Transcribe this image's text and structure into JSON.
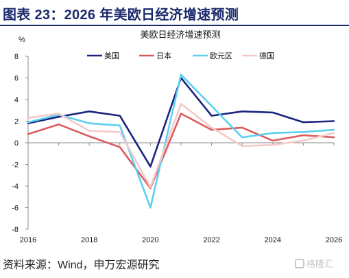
{
  "figure": {
    "title": "图表 23：2026 年美欧日经济增速预测",
    "source": "资料来源：Wind，申万宏源研究",
    "watermark": "格隆汇"
  },
  "chart_data": {
    "type": "line",
    "title": "美欧日经济增速预测",
    "ylabel": "%",
    "xlabel": "",
    "x": [
      2016,
      2017,
      2018,
      2019,
      2020,
      2021,
      2022,
      2023,
      2024,
      2025,
      2026
    ],
    "xticks": [
      "2016",
      "2018",
      "2020",
      "2022",
      "2024",
      "2026"
    ],
    "yticks": [
      "8",
      "6",
      "4",
      "2",
      "0",
      "-2",
      "-4",
      "-6",
      "-8"
    ],
    "ylim": [
      -8,
      8
    ],
    "grid": false,
    "legend_position": "top",
    "series": [
      {
        "name": "美国",
        "color": "#1a237e",
        "values": [
          1.8,
          2.4,
          2.9,
          2.5,
          -2.2,
          6.0,
          2.5,
          2.9,
          2.8,
          1.9,
          2.0
        ]
      },
      {
        "name": "日本",
        "color": "#dc5a5a",
        "values": [
          0.8,
          1.7,
          0.6,
          -0.4,
          -4.2,
          2.7,
          1.2,
          1.4,
          0.2,
          0.7,
          0.5
        ]
      },
      {
        "name": "欧元区",
        "color": "#5bd0f0",
        "values": [
          1.9,
          2.6,
          1.8,
          1.6,
          -6.0,
          6.3,
          3.4,
          0.5,
          0.9,
          1.0,
          1.2
        ]
      },
      {
        "name": "德国",
        "color": "#f5c9c9",
        "values": [
          2.3,
          2.7,
          1.1,
          1.0,
          -4.1,
          3.6,
          1.4,
          -0.3,
          -0.2,
          0.2,
          0.9
        ]
      }
    ]
  }
}
